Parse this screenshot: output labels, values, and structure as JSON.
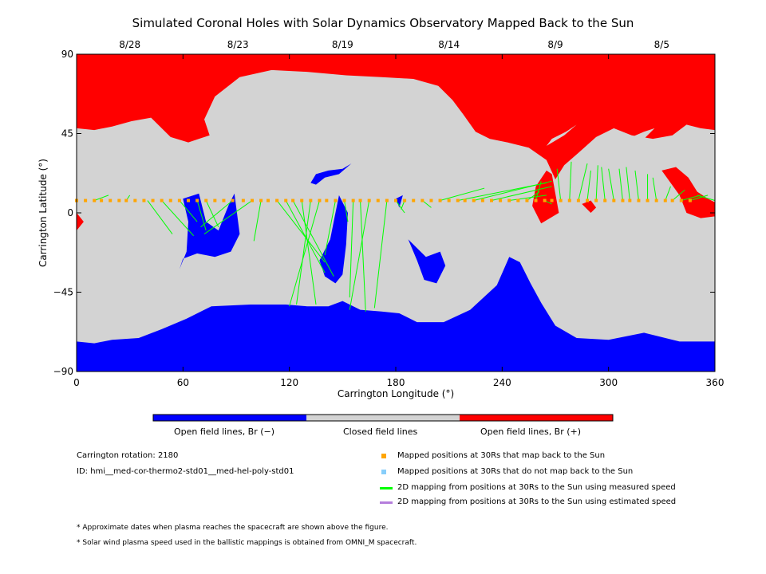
{
  "title": "Simulated Coronal Holes with Solar Dynamics Observatory Mapped Back to the Sun",
  "chart_data": {
    "type": "heatmap",
    "title": "Simulated Coronal Holes with Solar Dynamics Observatory Mapped Back to the Sun",
    "xlabel": "Carrington Longitude (°)",
    "ylabel": "Carrington Latitude (°)",
    "xlim": [
      0,
      360
    ],
    "ylim": [
      -90,
      90
    ],
    "xticks": [
      0,
      60,
      120,
      180,
      240,
      300,
      360
    ],
    "yticks": [
      -90,
      -45,
      0,
      45,
      90
    ],
    "xtick_labels": [
      "0",
      "60",
      "120",
      "180",
      "240",
      "300",
      "360"
    ],
    "ytick_labels": [
      "−90",
      "−45",
      "0",
      "45",
      "90"
    ],
    "top_axis": [
      {
        "label": "8/28",
        "lon": 30
      },
      {
        "label": "8/23",
        "lon": 91
      },
      {
        "label": "8/19",
        "lon": 150
      },
      {
        "label": "8/14",
        "lon": 210
      },
      {
        "label": "8/9",
        "lon": 270
      },
      {
        "label": "8/5",
        "lon": 330
      }
    ],
    "colorbar": [
      {
        "label": "Open field lines, Br (−)",
        "color": "#0000ff"
      },
      {
        "label": "Closed field lines",
        "color": "#d3d3d3"
      },
      {
        "label": "Open field lines, Br (+)",
        "color": "#ff0000"
      }
    ],
    "regions": {
      "north_positive": [
        [
          0,
          90
        ],
        [
          360,
          90
        ],
        [
          360,
          47
        ],
        [
          352,
          48
        ],
        [
          344,
          50
        ],
        [
          336,
          44
        ],
        [
          325,
          42
        ],
        [
          313,
          44
        ],
        [
          303,
          48
        ],
        [
          293,
          43
        ],
        [
          283,
          34
        ],
        [
          275,
          27
        ],
        [
          270,
          19
        ],
        [
          265,
          30
        ],
        [
          255,
          37
        ],
        [
          243,
          40
        ],
        [
          233,
          42
        ],
        [
          225,
          46
        ],
        [
          218,
          56
        ],
        [
          212,
          64
        ],
        [
          204,
          72
        ],
        [
          190,
          76
        ],
        [
          172,
          77
        ],
        [
          152,
          78
        ],
        [
          130,
          80
        ],
        [
          110,
          81
        ],
        [
          92,
          77
        ],
        [
          78,
          66
        ],
        [
          72,
          53
        ],
        [
          75,
          44
        ],
        [
          63,
          40
        ],
        [
          53,
          43
        ],
        [
          42,
          54
        ],
        [
          31,
          52
        ],
        [
          20,
          49
        ],
        [
          10,
          47
        ],
        [
          0,
          48
        ]
      ],
      "south_negative": [
        [
          0,
          -90
        ],
        [
          360,
          -90
        ],
        [
          360,
          -73
        ],
        [
          340,
          -73
        ],
        [
          320,
          -68
        ],
        [
          300,
          -72
        ],
        [
          282,
          -71
        ],
        [
          270,
          -64
        ],
        [
          262,
          -51
        ],
        [
          256,
          -40
        ],
        [
          250,
          -28
        ],
        [
          244,
          -25
        ],
        [
          237,
          -41
        ],
        [
          222,
          -55
        ],
        [
          207,
          -62
        ],
        [
          192,
          -62
        ],
        [
          182,
          -57
        ],
        [
          172,
          -56
        ],
        [
          160,
          -55
        ],
        [
          150,
          -50
        ],
        [
          142,
          -53
        ],
        [
          130,
          -53
        ],
        [
          118,
          -52
        ],
        [
          98,
          -52
        ],
        [
          76,
          -53
        ],
        [
          62,
          -60
        ],
        [
          48,
          -66
        ],
        [
          35,
          -71
        ],
        [
          20,
          -72
        ],
        [
          10,
          -74
        ],
        [
          0,
          -73
        ]
      ],
      "holes_negative": [
        [
          [
            60,
            8
          ],
          [
            69,
            11
          ],
          [
            73,
            -5
          ],
          [
            80,
            -10
          ],
          [
            86,
            5
          ],
          [
            89,
            11
          ],
          [
            92,
            -12
          ],
          [
            87,
            -22
          ],
          [
            78,
            -25
          ],
          [
            68,
            -23
          ],
          [
            60,
            -26
          ],
          [
            58,
            -32
          ],
          [
            62,
            -22
          ],
          [
            63,
            -5
          ]
        ],
        [
          [
            132,
            17
          ],
          [
            135,
            22
          ],
          [
            142,
            24
          ],
          [
            150,
            25
          ],
          [
            155,
            28
          ],
          [
            148,
            22
          ],
          [
            140,
            20
          ],
          [
            135,
            16
          ]
        ],
        [
          [
            148,
            10
          ],
          [
            153,
            0
          ],
          [
            152,
            -18
          ],
          [
            150,
            -35
          ],
          [
            146,
            -40
          ],
          [
            140,
            -36
          ],
          [
            137,
            -27
          ],
          [
            143,
            -15
          ],
          [
            146,
            0
          ]
        ],
        [
          [
            180,
            8
          ],
          [
            184,
            10
          ],
          [
            182,
            3
          ]
        ],
        [
          [
            187,
            -15
          ],
          [
            192,
            -20
          ],
          [
            197,
            -25
          ],
          [
            205,
            -22
          ],
          [
            208,
            -30
          ],
          [
            203,
            -40
          ],
          [
            196,
            -38
          ],
          [
            192,
            -27
          ]
        ]
      ],
      "holes_positive": [
        [
          [
            265,
            24
          ],
          [
            268,
            22
          ],
          [
            272,
            0
          ],
          [
            262,
            -6
          ],
          [
            257,
            4
          ],
          [
            259,
            15
          ]
        ],
        [
          [
            285,
            5
          ],
          [
            290,
            7
          ],
          [
            293,
            3
          ],
          [
            290,
            0
          ]
        ],
        [
          [
            330,
            24
          ],
          [
            338,
            26
          ],
          [
            345,
            20
          ],
          [
            350,
            12
          ],
          [
            356,
            8
          ],
          [
            360,
            6
          ],
          [
            360,
            -2
          ],
          [
            352,
            -3
          ],
          [
            344,
            0
          ],
          [
            340,
            10
          ]
        ],
        [
          [
            0,
            0
          ],
          [
            4,
            -5
          ],
          [
            0,
            -10
          ]
        ]
      ],
      "islands_closed": [
        [
          [
            252,
            -8
          ],
          [
            258,
            -10
          ],
          [
            263,
            -12
          ],
          [
            262,
            -16
          ],
          [
            257,
            -18
          ],
          [
            252,
            -15
          ]
        ],
        [
          [
            265,
            38
          ],
          [
            275,
            44
          ],
          [
            282,
            50
          ],
          [
            276,
            46
          ],
          [
            268,
            42
          ]
        ],
        [
          [
            310,
            38
          ],
          [
            320,
            42
          ],
          [
            326,
            48
          ],
          [
            320,
            46
          ],
          [
            313,
            43
          ]
        ]
      ]
    },
    "series": [
      {
        "name": "Mapped positions at 30Rs that map back to the Sun",
        "color": "#ffa500",
        "type": "scatter",
        "x": [
          0,
          5,
          10,
          14,
          19,
          24,
          28,
          33,
          38,
          43,
          48,
          53,
          58,
          63,
          68,
          73,
          78,
          83,
          88,
          94,
          99,
          104,
          108,
          113,
          118,
          122,
          127,
          132,
          137,
          141,
          146,
          151,
          156,
          160,
          165,
          170,
          175,
          180,
          185,
          190,
          195,
          200,
          205,
          210,
          215,
          219,
          224,
          229,
          234,
          239,
          244,
          249,
          254,
          259,
          264,
          268,
          273,
          278,
          283,
          288,
          293,
          298,
          303,
          308,
          312,
          317,
          322,
          327,
          332,
          336,
          341,
          346
        ],
        "y": [
          7,
          7,
          7,
          7,
          7,
          7,
          7,
          7,
          7,
          7,
          7,
          7,
          7,
          7,
          7,
          7,
          7,
          7,
          7,
          7,
          7,
          7,
          7,
          7,
          7,
          7,
          7,
          7,
          7,
          7,
          7,
          7,
          7,
          7,
          7,
          7,
          7,
          7,
          7,
          7,
          7,
          7,
          7,
          7,
          7,
          7,
          7,
          7,
          7,
          7,
          7,
          7,
          7,
          7,
          7,
          7,
          7,
          7,
          7,
          7,
          7,
          7,
          7,
          7,
          7,
          7,
          7,
          7,
          7,
          7,
          7,
          7
        ]
      },
      {
        "name": "Mapped positions at 30Rs that do not map back to the Sun",
        "color": "#87cefa",
        "type": "scatter",
        "x": [],
        "y": []
      },
      {
        "name": "2D mapping from positions at 30Rs to the Sun using measured speed",
        "color": "#00ff00",
        "type": "segments",
        "segments": [
          [
            0,
            7,
            0,
            10
          ],
          [
            10,
            7,
            18,
            10
          ],
          [
            28,
            7,
            30,
            10
          ],
          [
            40,
            7,
            54,
            -12
          ],
          [
            48,
            7,
            66,
            -13
          ],
          [
            58,
            7,
            68,
            -5
          ],
          [
            68,
            7,
            73,
            -10
          ],
          [
            73,
            7,
            80,
            -8
          ],
          [
            88,
            7,
            70,
            -8
          ],
          [
            99,
            7,
            72,
            -12
          ],
          [
            104,
            7,
            100,
            -16
          ],
          [
            113,
            7,
            140,
            -28
          ],
          [
            118,
            7,
            140,
            -34
          ],
          [
            122,
            7,
            145,
            -36
          ],
          [
            127,
            7,
            135,
            -52
          ],
          [
            132,
            7,
            124,
            -52
          ],
          [
            137,
            7,
            120,
            -53
          ],
          [
            146,
            7,
            140,
            -24
          ],
          [
            151,
            7,
            153,
            -5
          ],
          [
            156,
            7,
            154,
            -48
          ],
          [
            160,
            7,
            163,
            -56
          ],
          [
            165,
            7,
            154,
            -55
          ],
          [
            175,
            7,
            168,
            -54
          ],
          [
            180,
            7,
            185,
            0
          ],
          [
            185,
            7,
            183,
            2
          ],
          [
            195,
            7,
            200,
            3
          ],
          [
            205,
            7,
            230,
            14
          ],
          [
            215,
            7,
            265,
            17
          ],
          [
            224,
            7,
            268,
            18
          ],
          [
            234,
            7,
            268,
            15
          ],
          [
            244,
            7,
            265,
            10
          ],
          [
            254,
            7,
            261,
            12
          ],
          [
            259,
            7,
            262,
            18
          ],
          [
            264,
            7,
            268,
            5
          ],
          [
            273,
            7,
            271,
            25
          ],
          [
            278,
            7,
            279,
            29
          ],
          [
            283,
            7,
            288,
            28
          ],
          [
            288,
            7,
            290,
            24
          ],
          [
            293,
            7,
            294,
            27
          ],
          [
            298,
            7,
            296,
            26
          ],
          [
            303,
            7,
            300,
            25
          ],
          [
            308,
            7,
            306,
            25
          ],
          [
            312,
            7,
            310,
            26
          ],
          [
            317,
            7,
            315,
            24
          ],
          [
            322,
            7,
            322,
            22
          ],
          [
            327,
            7,
            325,
            20
          ],
          [
            332,
            7,
            335,
            15
          ],
          [
            336,
            7,
            343,
            13
          ],
          [
            341,
            7,
            352,
            10
          ],
          [
            346,
            7,
            356,
            10
          ],
          [
            360,
            7,
            350,
            10
          ]
        ]
      },
      {
        "name": "2D mapping from positions at 30Rs to the Sun using estimated speed",
        "color": "#b57edc",
        "type": "segments",
        "segments": []
      }
    ]
  },
  "info": {
    "rotation": "Carrington rotation: 2180",
    "id": "ID: hmi__med-cor-thermo2-std01__med-hel-poly-std01"
  },
  "legend": [
    {
      "text": "Mapped positions at 30Rs that map back to the Sun",
      "color": "#ffa500",
      "kind": "square"
    },
    {
      "text": "Mapped positions at 30Rs that do not map back to the Sun",
      "color": "#87cefa",
      "kind": "square"
    },
    {
      "text": "2D mapping from positions at 30Rs to the Sun using measured speed",
      "color": "#00ff00",
      "kind": "line"
    },
    {
      "text": "2D mapping from positions at 30Rs to the Sun using estimated speed",
      "color": "#b57edc",
      "kind": "line"
    }
  ],
  "notes": [
    "* Approximate dates when plasma reaches the spacecraft are shown above the figure.",
    "* Solar wind plasma speed used in the ballistic mappings is obtained from OMNI_M spacecraft."
  ]
}
